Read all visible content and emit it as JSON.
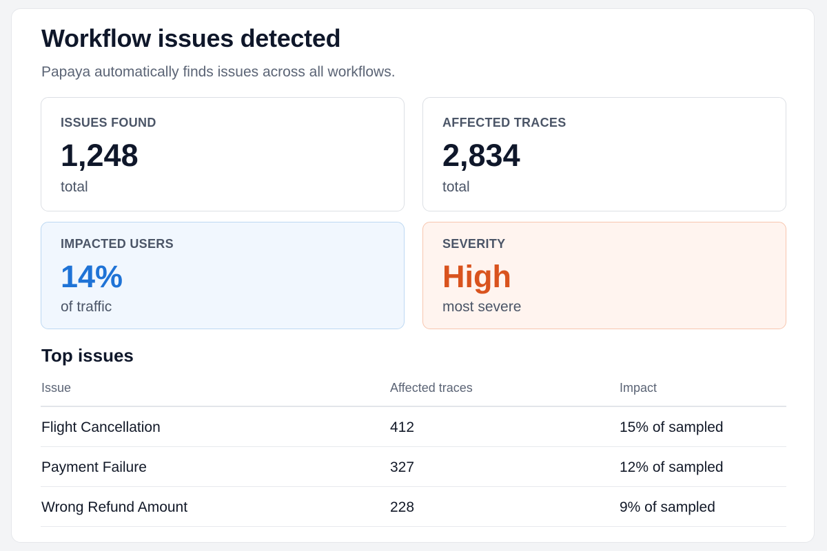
{
  "header": {
    "title": "Workflow issues detected",
    "subtitle": "Papaya automatically finds issues across all workflows."
  },
  "stats": [
    {
      "label": "ISSUES FOUND",
      "value": "1,248",
      "sub": "total"
    },
    {
      "label": "AFFECTED TRACES",
      "value": "2,834",
      "sub": "total"
    },
    {
      "label": "IMPACTED USERS",
      "value": "14%",
      "sub": "of traffic",
      "accent": "#1f73d6"
    },
    {
      "label": "SEVERITY",
      "value": "High",
      "sub": "most severe",
      "accent": "#d9531e"
    }
  ],
  "top_issues": {
    "title": "Top issues",
    "columns": [
      "Issue",
      "Affected traces",
      "Impact"
    ],
    "rows": [
      {
        "issue": "Flight Cancellation",
        "traces": "412",
        "impact": "15% of sampled"
      },
      {
        "issue": "Payment Failure",
        "traces": "327",
        "impact": "12% of sampled"
      },
      {
        "issue": "Wrong Refund Amount",
        "traces": "228",
        "impact": "9% of sampled"
      }
    ]
  }
}
